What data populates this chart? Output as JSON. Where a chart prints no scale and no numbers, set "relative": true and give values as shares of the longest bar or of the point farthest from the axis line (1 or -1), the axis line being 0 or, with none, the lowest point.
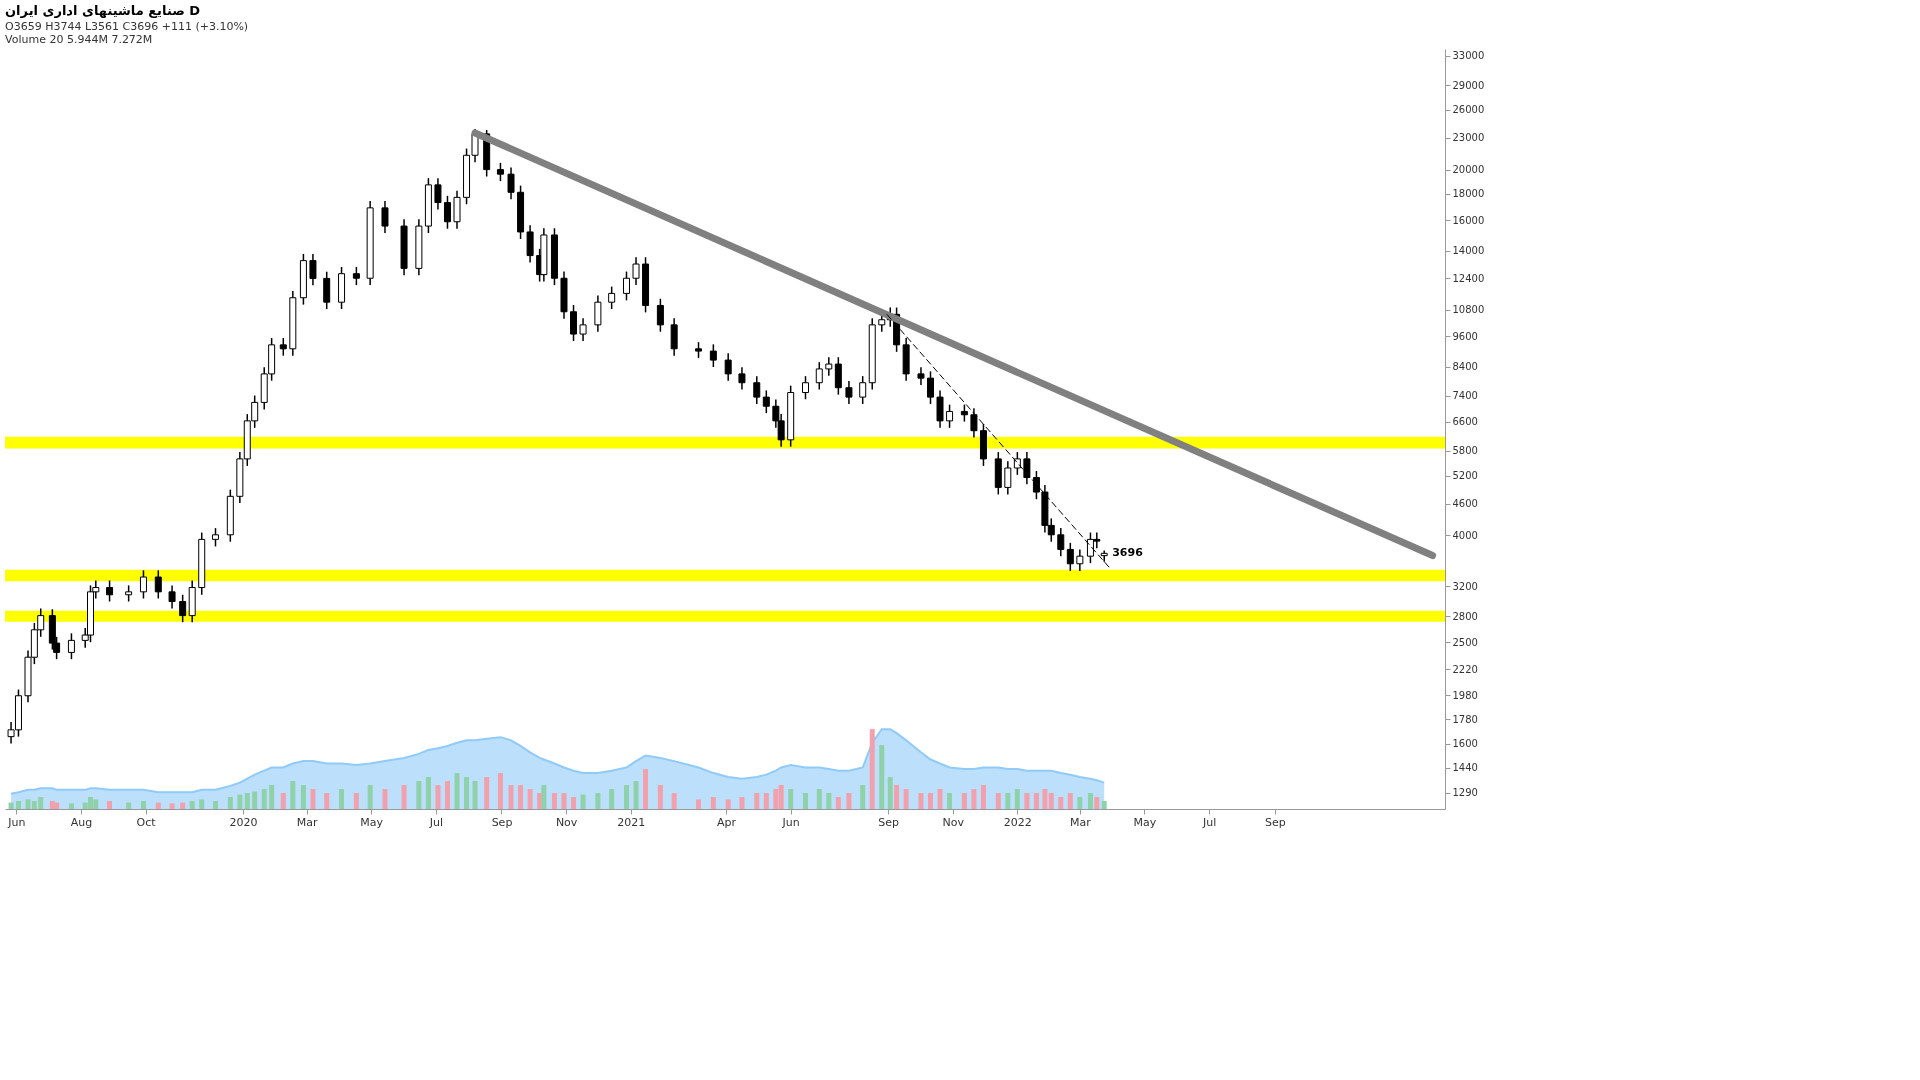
{
  "chart_data": [
    {
      "type": "candlestick",
      "title": "صنایع ماشینهای اداری ایران  D",
      "subtitle": "O3659 H3744 L3561 C3696 +111 (+3.10%)",
      "annotations": [
        "Volume 20  5.944M  7.272M",
        {
          "text": "3696",
          "x": "2022-03-24",
          "y": 3696
        }
      ],
      "xlim": [
        "2019-05-26",
        "2023-02-04"
      ],
      "xticks": [
        {
          "value": "2019-06-01",
          "label": "Jun"
        },
        {
          "value": "2019-08-01",
          "label": "Aug"
        },
        {
          "value": "2019-10-01",
          "label": "Oct"
        },
        {
          "value": "2020-01-01",
          "label": "2020"
        },
        {
          "value": "2020-03-01",
          "label": "Mar"
        },
        {
          "value": "2020-05-01",
          "label": "May"
        },
        {
          "value": "2020-07-01",
          "label": "Jul"
        },
        {
          "value": "2020-09-01",
          "label": "Sep"
        },
        {
          "value": "2020-11-01",
          "label": "Nov"
        },
        {
          "value": "2021-01-01",
          "label": "2021"
        },
        {
          "value": "2021-04-01",
          "label": "Apr"
        },
        {
          "value": "2021-06-01",
          "label": "Jun"
        },
        {
          "value": "2021-09-01",
          "label": "Sep"
        },
        {
          "value": "2021-11-01",
          "label": "Nov"
        },
        {
          "value": "2022-01-01",
          "label": "2022"
        },
        {
          "value": "2022-03-01",
          "label": "Mar"
        },
        {
          "value": "2022-05-01",
          "label": "May"
        },
        {
          "value": "2022-07-01",
          "label": "Jul"
        },
        {
          "value": "2022-09-01",
          "label": "Sep"
        }
      ],
      "ylim": [
        1200,
        34000
      ],
      "log": true,
      "grid": false,
      "yticks": [
        1290,
        1440,
        1600,
        1780,
        1980,
        2220,
        2500,
        2800,
        3200,
        4000,
        4600,
        5200,
        5800,
        6600,
        7400,
        8400,
        9600,
        10800,
        12400,
        14000,
        16000,
        18000,
        20000,
        23000,
        26000,
        29000,
        33000
      ],
      "bands": [
        {
          "axis": "y",
          "from": 5860,
          "to": 6170,
          "color": "#ffff00"
        },
        {
          "axis": "y",
          "from": 3270,
          "to": 3440,
          "color": "#ffff00"
        },
        {
          "axis": "y",
          "from": 2735,
          "to": 2870,
          "color": "#ffff00"
        }
      ],
      "x": [
        "2019-05-27",
        "2019-06-03",
        "2019-06-12",
        "2019-06-18",
        "2019-06-24",
        "2019-07-05",
        "2019-07-09",
        "2019-07-23",
        "2019-08-05",
        "2019-08-10",
        "2019-08-15",
        "2019-08-28",
        "2019-09-15",
        "2019-09-29",
        "2019-10-13",
        "2019-10-26",
        "2019-11-05",
        "2019-11-14",
        "2019-11-23",
        "2019-12-06",
        "2019-12-20",
        "2019-12-29",
        "2020-01-05",
        "2020-01-12",
        "2020-01-21",
        "2020-01-28",
        "2020-02-08",
        "2020-02-17",
        "2020-02-27",
        "2020-03-07",
        "2020-03-20",
        "2020-04-03",
        "2020-04-17",
        "2020-04-30",
        "2020-05-14",
        "2020-06-01",
        "2020-06-15",
        "2020-06-24",
        "2020-07-03",
        "2020-07-12",
        "2020-07-21",
        "2020-07-30",
        "2020-08-07",
        "2020-08-18",
        "2020-08-31",
        "2020-09-10",
        "2020-09-19",
        "2020-09-28",
        "2020-10-07",
        "2020-10-11",
        "2020-10-21",
        "2020-10-30",
        "2020-11-08",
        "2020-11-17",
        "2020-12-01",
        "2020-12-14",
        "2020-12-28",
        "2021-01-06",
        "2021-01-15",
        "2021-01-29",
        "2021-02-11",
        "2021-03-06",
        "2021-03-20",
        "2021-04-03",
        "2021-04-16",
        "2021-04-30",
        "2021-05-09",
        "2021-05-18",
        "2021-05-23",
        "2021-06-01",
        "2021-06-15",
        "2021-06-28",
        "2021-07-07",
        "2021-07-16",
        "2021-07-26",
        "2021-08-08",
        "2021-08-17",
        "2021-08-26",
        "2021-09-03",
        "2021-09-09",
        "2021-09-18",
        "2021-10-02",
        "2021-10-11",
        "2021-10-20",
        "2021-10-29",
        "2021-11-12",
        "2021-11-21",
        "2021-11-30",
        "2021-12-14",
        "2021-12-23",
        "2022-01-01",
        "2022-01-10",
        "2022-01-19",
        "2022-01-27",
        "2022-02-02",
        "2022-02-11",
        "2022-02-20",
        "2022-03-01",
        "2022-03-11",
        "2022-03-17",
        "2022-03-24"
      ],
      "series": [
        {
          "type": "candlestick",
          "color": "#000000",
          "ohlc": [
            [
              1650,
              1760,
              1600,
              1700
            ],
            [
              1700,
              2030,
              1650,
              1975
            ],
            [
              1975,
              2410,
              1920,
              2340
            ],
            [
              2340,
              2720,
              2270,
              2640
            ],
            [
              2640,
              2900,
              2560,
              2810
            ],
            [
              2810,
              2890,
              2420,
              2490
            ],
            [
              2490,
              2560,
              2320,
              2390
            ],
            [
              2390,
              2600,
              2320,
              2520
            ],
            [
              2520,
              2660,
              2440,
              2580
            ],
            [
              2580,
              3210,
              2500,
              3120
            ],
            [
              3120,
              3280,
              3030,
              3180
            ],
            [
              3180,
              3280,
              2990,
              3080
            ],
            [
              3080,
              3210,
              2990,
              3120
            ],
            [
              3120,
              3430,
              3030,
              3330
            ],
            [
              3330,
              3430,
              3030,
              3120
            ],
            [
              3120,
              3210,
              2900,
              2990
            ],
            [
              2990,
              3080,
              2730,
              2810
            ],
            [
              2810,
              3280,
              2730,
              3180
            ],
            [
              3180,
              4050,
              3080,
              3930
            ],
            [
              3930,
              4130,
              3810,
              4010
            ],
            [
              4010,
              4890,
              3890,
              4750
            ],
            [
              4750,
              5770,
              4610,
              5600
            ],
            [
              5600,
              6820,
              5430,
              6620
            ],
            [
              6620,
              7400,
              6420,
              7180
            ],
            [
              7180,
              8380,
              6960,
              8140
            ],
            [
              8140,
              9530,
              7900,
              9250
            ],
            [
              9250,
              9530,
              8820,
              9090
            ],
            [
              9090,
              11720,
              8820,
              11380
            ],
            [
              11380,
              13800,
              11040,
              13400
            ],
            [
              13400,
              13800,
              12020,
              12390
            ],
            [
              12390,
              12760,
              10830,
              11160
            ],
            [
              11160,
              13030,
              10830,
              12650
            ],
            [
              12650,
              13030,
              12030,
              12400
            ],
            [
              12400,
              17410,
              12030,
              16900
            ],
            [
              16900,
              17410,
              15130,
              15600
            ],
            [
              15600,
              16070,
              12560,
              12950
            ],
            [
              12950,
              16070,
              12560,
              15600
            ],
            [
              15600,
              19260,
              15130,
              18700
            ],
            [
              18700,
              19260,
              16780,
              17300
            ],
            [
              17300,
              17820,
              15420,
              15900
            ],
            [
              15900,
              18230,
              15420,
              17700
            ],
            [
              17700,
              21940,
              17170,
              21300
            ],
            [
              21300,
              23900,
              20660,
              23400
            ],
            [
              23400,
              23800,
              19400,
              20000
            ],
            [
              20000,
              20600,
              19010,
              19600
            ],
            [
              19600,
              20190,
              17560,
              18100
            ],
            [
              18100,
              18640,
              14740,
              15200
            ],
            [
              15200,
              15660,
              13290,
              13700
            ],
            [
              13700,
              14110,
              12220,
              12600
            ],
            [
              12600,
              15450,
              12220,
              15000
            ],
            [
              15000,
              15450,
              12030,
              12400
            ],
            [
              12400,
              12770,
              10380,
              10700
            ],
            [
              10700,
              11020,
              9410,
              9700
            ],
            [
              9700,
              10400,
              9410,
              10100
            ],
            [
              10100,
              11490,
              9800,
              11160
            ],
            [
              11160,
              11950,
              10830,
              11600
            ],
            [
              11600,
              12770,
              11250,
              12400
            ],
            [
              12400,
              13600,
              12030,
              13200
            ],
            [
              13200,
              13600,
              10670,
              11000
            ],
            [
              11000,
              11330,
              9800,
              10100
            ],
            [
              10100,
              10400,
              8820,
              9090
            ],
            [
              9090,
              9360,
              8730,
              9000
            ],
            [
              9000,
              9270,
              8390,
              8650
            ],
            [
              8650,
              8910,
              7900,
              8140
            ],
            [
              8140,
              8380,
              7600,
              7830
            ],
            [
              7830,
              8060,
              7130,
              7350
            ],
            [
              7350,
              7570,
              6850,
              7060
            ],
            [
              7060,
              7270,
              6420,
              6620
            ],
            [
              6620,
              6820,
              5910,
              6090
            ],
            [
              6090,
              7730,
              5910,
              7500
            ],
            [
              7500,
              8060,
              7280,
              7830
            ],
            [
              7830,
              8570,
              7600,
              8320
            ],
            [
              8320,
              8760,
              8070,
              8500
            ],
            [
              8500,
              8760,
              7430,
              7660
            ],
            [
              7660,
              7890,
              7130,
              7350
            ],
            [
              7350,
              8060,
              7130,
              7830
            ],
            [
              7830,
              10400,
              7600,
              10100
            ],
            [
              10100,
              10640,
              9800,
              10330
            ],
            [
              10330,
              10900,
              10020,
              10580
            ],
            [
              10580,
              10900,
              8970,
              9250
            ],
            [
              9250,
              9530,
              7900,
              8140
            ],
            [
              8140,
              8380,
              7750,
              7990
            ],
            [
              7990,
              8230,
              7130,
              7350
            ],
            [
              7350,
              7570,
              6420,
              6620
            ],
            [
              6620,
              7110,
              6420,
              6900
            ],
            [
              6900,
              7110,
              6600,
              6800
            ],
            [
              6800,
              7000,
              6150,
              6340
            ],
            [
              6340,
              6530,
              5430,
              5600
            ],
            [
              5600,
              5770,
              4790,
              4940
            ],
            [
              4940,
              5540,
              4790,
              5380
            ],
            [
              5380,
              5770,
              5220,
              5600
            ],
            [
              5600,
              5770,
              5010,
              5160
            ],
            [
              5160,
              5310,
              4690,
              4840
            ],
            [
              4840,
              4990,
              4050,
              4180
            ],
            [
              4180,
              4310,
              3890,
              4010
            ],
            [
              4010,
              4130,
              3650,
              3760
            ],
            [
              3760,
              3870,
              3420,
              3530
            ],
            [
              3530,
              3760,
              3420,
              3650
            ],
            [
              3650,
              4050,
              3540,
              3930
            ],
            [
              3930,
              4050,
              3780,
              3900
            ],
            [
              3659,
              3744,
              3561,
              3696
            ]
          ]
        },
        {
          "type": "line",
          "color": "#808080",
          "line_style": "solid",
          "x": [
            "2020-08-07",
            "2023-01-28"
          ],
          "values": [
            23500,
            3660
          ]
        },
        {
          "type": "line",
          "color": "#000000",
          "line_style": "dashed",
          "x": [
            "2021-08-31",
            "2022-03-29"
          ],
          "values": [
            10570,
            3470
          ]
        }
      ]
    },
    {
      "type": "bar",
      "relative": true,
      "tick_labels": "x",
      "xlim": [
        "2019-05-26",
        "2023-02-04"
      ],
      "x": [
        "2019-05-27",
        "2019-06-03",
        "2019-06-12",
        "2019-06-18",
        "2019-06-24",
        "2019-07-05",
        "2019-07-09",
        "2019-07-23",
        "2019-08-05",
        "2019-08-10",
        "2019-08-15",
        "2019-08-28",
        "2019-09-15",
        "2019-09-29",
        "2019-10-13",
        "2019-10-26",
        "2019-11-05",
        "2019-11-14",
        "2019-11-23",
        "2019-12-06",
        "2019-12-20",
        "2019-12-29",
        "2020-01-05",
        "2020-01-12",
        "2020-01-21",
        "2020-01-28",
        "2020-02-08",
        "2020-02-17",
        "2020-02-27",
        "2020-03-07",
        "2020-03-20",
        "2020-04-03",
        "2020-04-17",
        "2020-04-30",
        "2020-05-14",
        "2020-06-01",
        "2020-06-15",
        "2020-06-24",
        "2020-07-03",
        "2020-07-12",
        "2020-07-21",
        "2020-07-30",
        "2020-08-07",
        "2020-08-18",
        "2020-08-31",
        "2020-09-10",
        "2020-09-19",
        "2020-09-28",
        "2020-10-07",
        "2020-10-11",
        "2020-10-21",
        "2020-10-30",
        "2020-11-08",
        "2020-11-17",
        "2020-12-01",
        "2020-12-14",
        "2020-12-28",
        "2021-01-06",
        "2021-01-15",
        "2021-01-29",
        "2021-02-11",
        "2021-03-06",
        "2021-03-20",
        "2021-04-03",
        "2021-04-16",
        "2021-04-30",
        "2021-05-09",
        "2021-05-18",
        "2021-05-23",
        "2021-06-01",
        "2021-06-15",
        "2021-06-28",
        "2021-07-07",
        "2021-07-16",
        "2021-07-26",
        "2021-08-08",
        "2021-08-17",
        "2021-08-26",
        "2021-09-03",
        "2021-09-09",
        "2021-09-18",
        "2021-10-02",
        "2021-10-11",
        "2021-10-20",
        "2021-10-29",
        "2021-11-12",
        "2021-11-21",
        "2021-11-30",
        "2021-12-14",
        "2021-12-23",
        "2022-01-01",
        "2022-01-10",
        "2022-01-19",
        "2022-01-27",
        "2022-02-02",
        "2022-02-11",
        "2022-02-20",
        "2022-03-01",
        "2022-03-11",
        "2022-03-17",
        "2022-03-24"
      ],
      "values": [
        0.08,
        0.1,
        0.12,
        0.1,
        0.15,
        0.1,
        0.08,
        0.07,
        0.08,
        0.15,
        0.12,
        0.1,
        0.08,
        0.1,
        0.08,
        0.07,
        0.08,
        0.1,
        0.12,
        0.1,
        0.15,
        0.18,
        0.2,
        0.22,
        0.25,
        0.3,
        0.2,
        0.35,
        0.3,
        0.25,
        0.2,
        0.25,
        0.2,
        0.3,
        0.25,
        0.3,
        0.35,
        0.4,
        0.3,
        0.35,
        0.45,
        0.4,
        0.35,
        0.4,
        0.45,
        0.3,
        0.3,
        0.25,
        0.2,
        0.3,
        0.2,
        0.2,
        0.15,
        0.18,
        0.2,
        0.25,
        0.3,
        0.35,
        0.5,
        0.3,
        0.2,
        0.12,
        0.15,
        0.12,
        0.15,
        0.2,
        0.2,
        0.25,
        0.3,
        0.25,
        0.2,
        0.25,
        0.2,
        0.15,
        0.2,
        0.3,
        1.0,
        0.8,
        0.4,
        0.3,
        0.25,
        0.2,
        0.2,
        0.25,
        0.2,
        0.2,
        0.25,
        0.3,
        0.2,
        0.2,
        0.25,
        0.2,
        0.2,
        0.25,
        0.2,
        0.15,
        0.2,
        0.15,
        0.2,
        0.15,
        0.1
      ],
      "colors": [
        "#8fd1a8",
        "#8fd1a8",
        "#8fd1a8",
        "#8fd1a8",
        "#8fd1a8",
        "#f2a0ac",
        "#f2a0ac",
        "#8fd1a8",
        "#8fd1a8",
        "#8fd1a8",
        "#8fd1a8",
        "#f2a0ac",
        "#8fd1a8",
        "#8fd1a8",
        "#f2a0ac",
        "#f2a0ac",
        "#f2a0ac",
        "#8fd1a8",
        "#8fd1a8",
        "#8fd1a8",
        "#8fd1a8",
        "#8fd1a8",
        "#8fd1a8",
        "#8fd1a8",
        "#8fd1a8",
        "#8fd1a8",
        "#f2a0ac",
        "#8fd1a8",
        "#8fd1a8",
        "#f2a0ac",
        "#f2a0ac",
        "#8fd1a8",
        "#f2a0ac",
        "#8fd1a8",
        "#f2a0ac",
        "#f2a0ac",
        "#8fd1a8",
        "#8fd1a8",
        "#f2a0ac",
        "#f2a0ac",
        "#8fd1a8",
        "#8fd1a8",
        "#8fd1a8",
        "#f2a0ac",
        "#f2a0ac",
        "#f2a0ac",
        "#f2a0ac",
        "#f2a0ac",
        "#f2a0ac",
        "#8fd1a8",
        "#f2a0ac",
        "#f2a0ac",
        "#f2a0ac",
        "#8fd1a8",
        "#8fd1a8",
        "#8fd1a8",
        "#8fd1a8",
        "#8fd1a8",
        "#f2a0ac",
        "#f2a0ac",
        "#f2a0ac",
        "#f2a0ac",
        "#f2a0ac",
        "#f2a0ac",
        "#f2a0ac",
        "#f2a0ac",
        "#f2a0ac",
        "#f2a0ac",
        "#f2a0ac",
        "#8fd1a8",
        "#8fd1a8",
        "#8fd1a8",
        "#8fd1a8",
        "#f2a0ac",
        "#f2a0ac",
        "#8fd1a8",
        "#f2a0ac",
        "#8fd1a8",
        "#8fd1a8",
        "#f2a0ac",
        "#f2a0ac",
        "#f2a0ac",
        "#f2a0ac",
        "#f2a0ac",
        "#8fd1a8",
        "#f2a0ac",
        "#f2a0ac",
        "#f2a0ac",
        "#f2a0ac",
        "#8fd1a8",
        "#8fd1a8",
        "#f2a0ac",
        "#f2a0ac",
        "#f2a0ac",
        "#f2a0ac",
        "#f2a0ac",
        "#f2a0ac",
        "#8fd1a8",
        "#8fd1a8",
        "#f2a0ac",
        "#8fd1a8"
      ]
    },
    {
      "type": "area",
      "relative": true,
      "tick_labels": "x",
      "xlim": [
        "2019-05-26",
        "2023-02-04"
      ],
      "color": "#90caf9",
      "x": [
        "2019-05-27",
        "2019-06-03",
        "2019-06-12",
        "2019-06-18",
        "2019-06-24",
        "2019-07-05",
        "2019-07-09",
        "2019-07-23",
        "2019-08-05",
        "2019-08-10",
        "2019-08-15",
        "2019-08-28",
        "2019-09-15",
        "2019-09-29",
        "2019-10-13",
        "2019-10-26",
        "2019-11-05",
        "2019-11-14",
        "2019-11-23",
        "2019-12-06",
        "2019-12-20",
        "2019-12-29",
        "2020-01-05",
        "2020-01-12",
        "2020-01-21",
        "2020-01-28",
        "2020-02-08",
        "2020-02-17",
        "2020-02-27",
        "2020-03-07",
        "2020-03-20",
        "2020-04-03",
        "2020-04-17",
        "2020-04-30",
        "2020-05-14",
        "2020-06-01",
        "2020-06-15",
        "2020-06-24",
        "2020-07-03",
        "2020-07-12",
        "2020-07-21",
        "2020-07-30",
        "2020-08-07",
        "2020-08-18",
        "2020-08-31",
        "2020-09-10",
        "2020-09-19",
        "2020-09-28",
        "2020-10-07",
        "2020-10-11",
        "2020-10-21",
        "2020-10-30",
        "2020-11-08",
        "2020-11-17",
        "2020-12-01",
        "2020-12-14",
        "2020-12-28",
        "2021-01-06",
        "2021-01-15",
        "2021-01-29",
        "2021-02-11",
        "2021-03-06",
        "2021-03-20",
        "2021-04-03",
        "2021-04-16",
        "2021-04-30",
        "2021-05-09",
        "2021-05-18",
        "2021-05-23",
        "2021-06-01",
        "2021-06-15",
        "2021-06-28",
        "2021-07-07",
        "2021-07-16",
        "2021-07-26",
        "2021-08-08",
        "2021-08-17",
        "2021-08-26",
        "2021-09-03",
        "2021-09-09",
        "2021-09-18",
        "2021-10-02",
        "2021-10-11",
        "2021-10-20",
        "2021-10-29",
        "2021-11-12",
        "2021-11-21",
        "2021-11-30",
        "2021-12-14",
        "2021-12-23",
        "2022-01-01",
        "2022-01-10",
        "2022-01-19",
        "2022-01-27",
        "2022-02-02",
        "2022-02-11",
        "2022-02-20",
        "2022-03-01",
        "2022-03-11",
        "2022-03-17",
        "2022-03-24"
      ],
      "values": [
        0.19,
        0.21,
        0.24,
        0.24,
        0.26,
        0.26,
        0.24,
        0.24,
        0.24,
        0.26,
        0.26,
        0.24,
        0.24,
        0.24,
        0.21,
        0.21,
        0.21,
        0.21,
        0.24,
        0.24,
        0.29,
        0.33,
        0.38,
        0.43,
        0.48,
        0.52,
        0.52,
        0.57,
        0.6,
        0.6,
        0.57,
        0.57,
        0.55,
        0.57,
        0.6,
        0.64,
        0.69,
        0.74,
        0.76,
        0.79,
        0.83,
        0.86,
        0.86,
        0.88,
        0.9,
        0.86,
        0.79,
        0.71,
        0.64,
        0.62,
        0.57,
        0.52,
        0.48,
        0.45,
        0.45,
        0.48,
        0.52,
        0.6,
        0.67,
        0.64,
        0.6,
        0.52,
        0.45,
        0.4,
        0.38,
        0.4,
        0.43,
        0.48,
        0.52,
        0.55,
        0.52,
        0.52,
        0.5,
        0.48,
        0.48,
        0.52,
        0.83,
        1,
        1,
        0.95,
        0.86,
        0.71,
        0.62,
        0.57,
        0.52,
        0.5,
        0.5,
        0.52,
        0.52,
        0.5,
        0.5,
        0.48,
        0.48,
        0.48,
        0.48,
        0.45,
        0.43,
        0.4,
        0.38,
        0.36,
        0.33
      ]
    }
  ]
}
